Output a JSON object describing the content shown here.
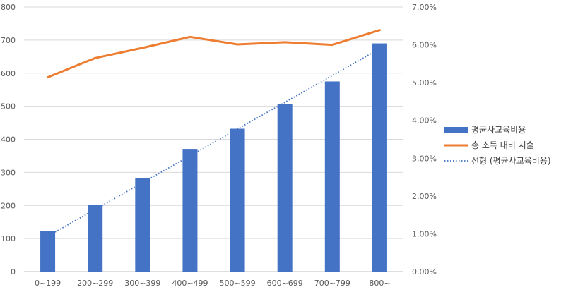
{
  "chart_data": {
    "type": "bar",
    "title": "",
    "xlabel": "",
    "ylabel": "",
    "y2label": "",
    "categories": [
      "0~199",
      "200~299",
      "300~399",
      "400~499",
      "500~599",
      "600~699",
      "700~799",
      "800~"
    ],
    "ylim": [
      0,
      800
    ],
    "yticks": [
      "0",
      "100",
      "200",
      "300",
      "400",
      "500",
      "600",
      "700",
      "800"
    ],
    "y2lim": [
      0,
      0.07
    ],
    "y2ticks": [
      "0.00%",
      "1.00%",
      "2.00%",
      "3.00%",
      "4.00%",
      "5.00%",
      "6.00%",
      "7.00%"
    ],
    "grid": true,
    "legend_position": "right",
    "series": [
      {
        "name": "평균사교육비용",
        "type": "bar",
        "axis": "left",
        "color": "#4472C4",
        "values": [
          123,
          202,
          283,
          371,
          432,
          507,
          575,
          690
        ]
      },
      {
        "name": "총 소득 대비 지출",
        "type": "line",
        "axis": "right",
        "color": "#ED7D31",
        "values": [
          0.0514,
          0.0565,
          0.0592,
          0.0621,
          0.0601,
          0.0607,
          0.06,
          0.0639
        ]
      },
      {
        "name": "선형 (평균사교육비용)",
        "type": "trendline",
        "axis": "left",
        "color": "#4472C4",
        "values": [
          107,
          188,
          269,
          350,
          431,
          512,
          593,
          674
        ]
      }
    ]
  }
}
